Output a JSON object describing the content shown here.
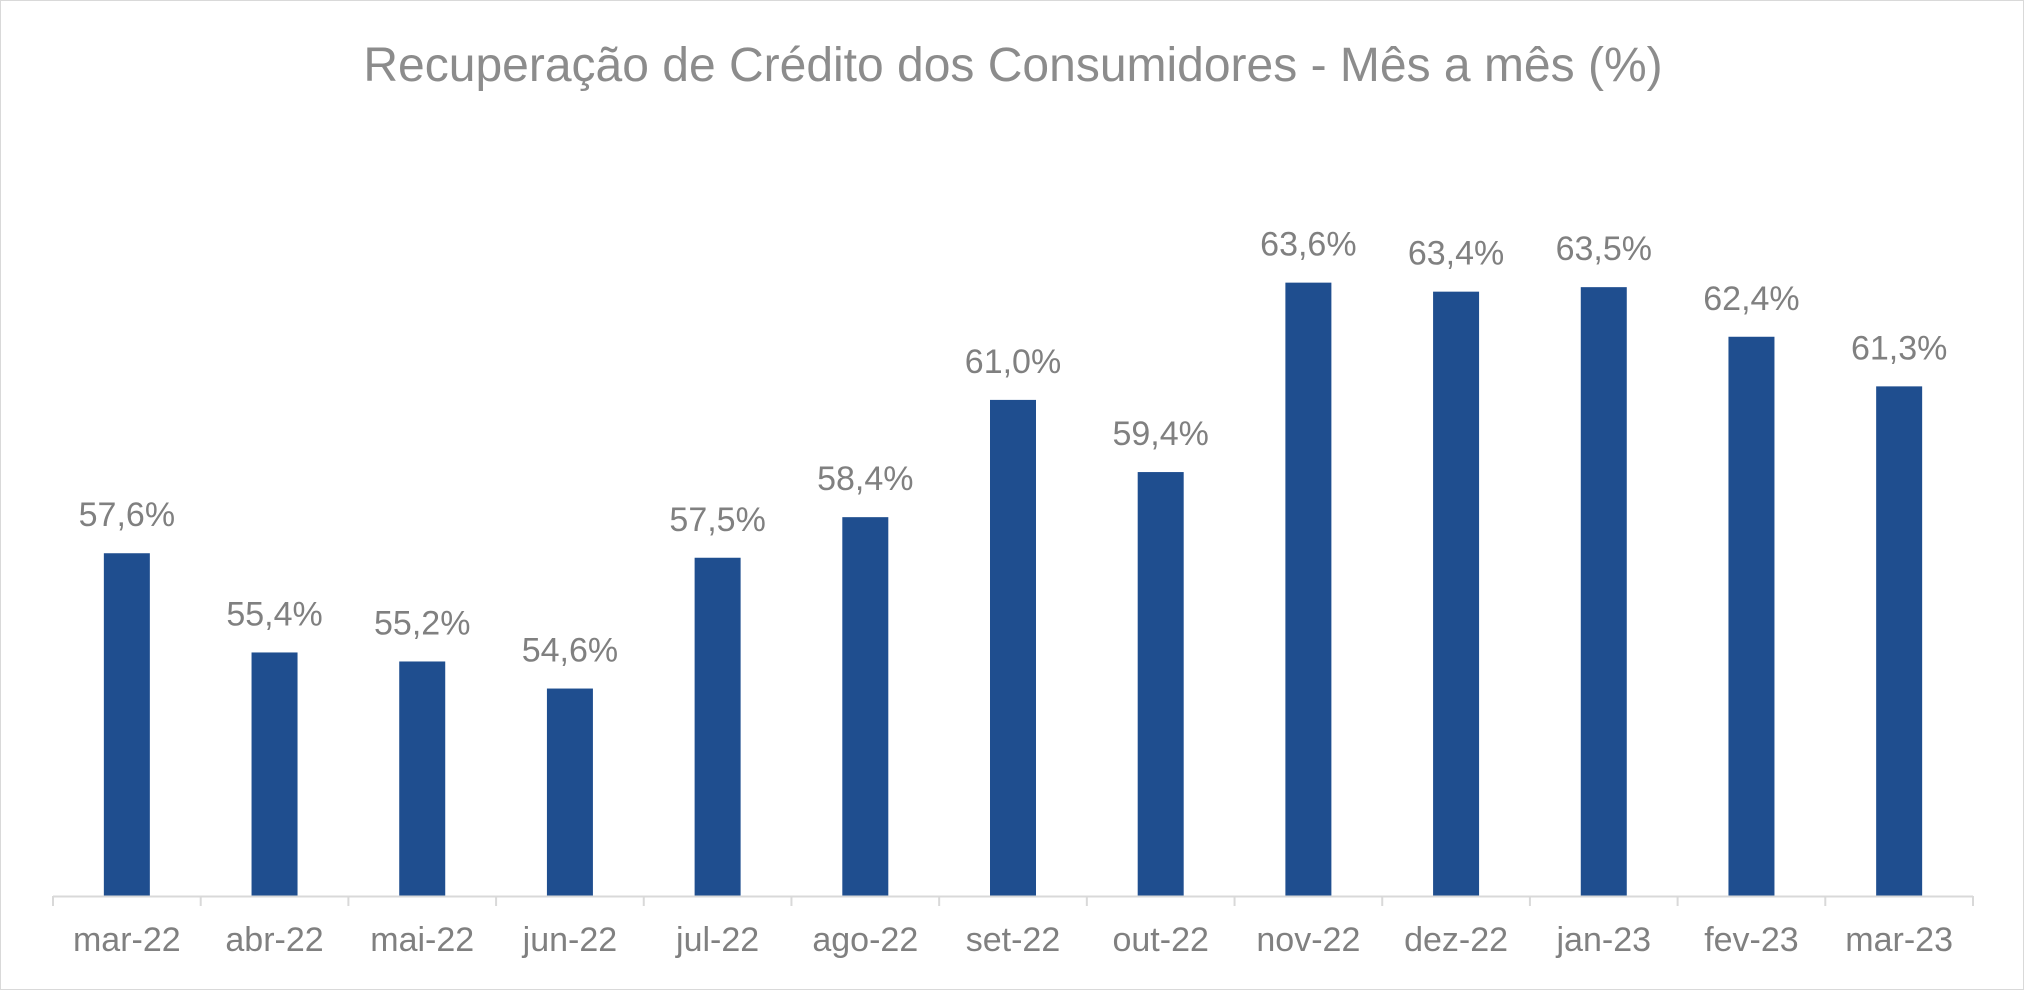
{
  "chart_data": {
    "type": "bar",
    "title": "Recuperação de Crédito dos Consumidores - Mês a mês (%)",
    "xlabel": "",
    "ylabel": "",
    "categories": [
      "mar-22",
      "abr-22",
      "mai-22",
      "jun-22",
      "jul-22",
      "ago-22",
      "set-22",
      "out-22",
      "nov-22",
      "dez-22",
      "jan-23",
      "fev-23",
      "mar-23"
    ],
    "values": [
      57.6,
      55.4,
      55.2,
      54.6,
      57.5,
      58.4,
      61.0,
      59.4,
      63.6,
      63.4,
      63.5,
      62.4,
      61.3
    ],
    "value_labels": [
      "57,6%",
      "55,4%",
      "55,2%",
      "54,6%",
      "57,5%",
      "58,4%",
      "61,0%",
      "59,4%",
      "63,6%",
      "63,4%",
      "63,5%",
      "62,4%",
      "61,3%"
    ],
    "ylim": [
      50,
      64.5
    ],
    "grid": false,
    "legend": "none",
    "colors": {
      "bar": "#1f4e8f",
      "text": "#808080",
      "axis": "#d9d9d9"
    }
  }
}
